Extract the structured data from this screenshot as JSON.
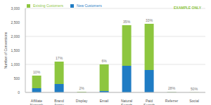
{
  "chart_data": {
    "type": "bar",
    "stacked": true,
    "y_label": "Number of Conversions",
    "annotation": "EXAMPLE ONLY",
    "categories": [
      "Affiliate Network",
      "Brand Aware",
      "Display",
      "Email",
      "Natural Search",
      "Paid Search",
      "Referrer",
      "Social"
    ],
    "series": [
      {
        "name": "New Customers",
        "color": "#1f7cc4",
        "values": [
          150,
          300,
          5,
          50,
          950,
          800,
          5,
          0
        ]
      },
      {
        "name": "Existing Customers",
        "color": "#8dc63f",
        "values": [
          450,
          800,
          20,
          950,
          1450,
          1650,
          10,
          5
        ]
      }
    ],
    "bar_annotations": [
      "10%",
      "17%",
      "2%",
      "6%",
      "35%",
      "33%",
      "28%",
      "50%"
    ],
    "ylim": [
      0,
      3000
    ],
    "yticks": [
      0,
      500,
      {
        "value": 1000,
        "label": "1,000"
      },
      {
        "value": 1500,
        "label": "1,500"
      },
      {
        "value": 2000,
        "label": "2,000"
      },
      {
        "value": 2500,
        "label": "2,500"
      },
      {
        "value": 3000,
        "label": "3,000"
      }
    ],
    "grid": true,
    "legend": "upper left"
  }
}
